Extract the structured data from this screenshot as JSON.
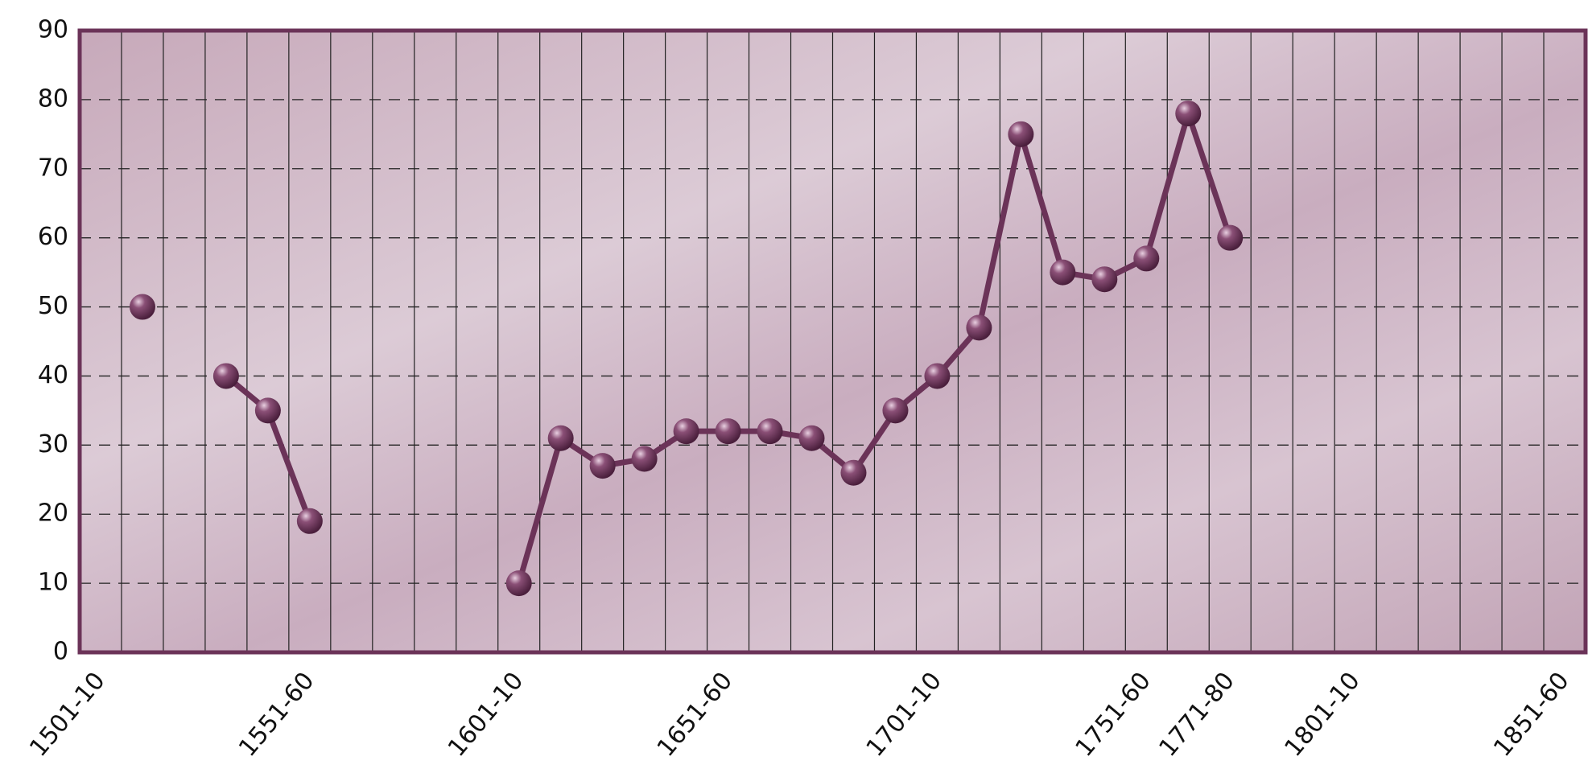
{
  "chart_data": {
    "type": "line",
    "categories": [
      "1501-10",
      null,
      null,
      null,
      null,
      "1551-60",
      null,
      null,
      null,
      null,
      "1601-10",
      null,
      null,
      null,
      null,
      "1651-60",
      null,
      null,
      null,
      null,
      "1701-10",
      null,
      null,
      null,
      null,
      "1751-60",
      null,
      "1771-80",
      null,
      null,
      "1801-10",
      null,
      null,
      null,
      null,
      "1851-60"
    ],
    "series": [
      {
        "name": null,
        "color": "#6b3358",
        "values": [
          null,
          50,
          null,
          40,
          35,
          19,
          null,
          null,
          null,
          null,
          10,
          31,
          27,
          28,
          32,
          32,
          32,
          31,
          26,
          35,
          40,
          47,
          75,
          55,
          54,
          57,
          78,
          60,
          null,
          null,
          null,
          null,
          null,
          null,
          null,
          null
        ]
      }
    ],
    "ylim": [
      0,
      90
    ],
    "yticks": [
      0,
      10,
      20,
      30,
      40,
      50,
      60,
      70,
      80,
      90
    ],
    "grid": true
  }
}
